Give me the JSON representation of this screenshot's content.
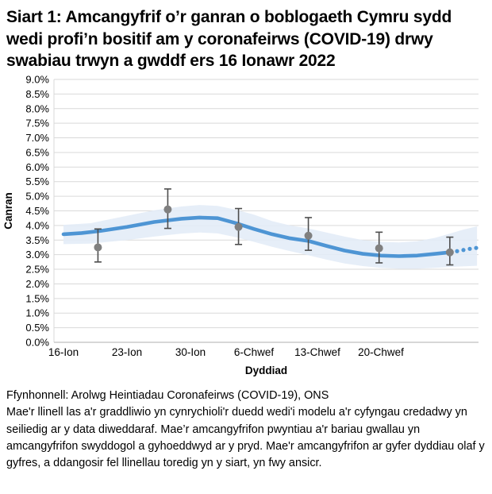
{
  "title": "Siart 1: Amcangyfrif o’r ganran o boblogaeth Cymru sydd wedi profi’n bositif am y coronafeirws (COVID-19) drwy swabiau trwyn a gwddf ers 16 Ionawr 2022",
  "footer": {
    "source": "Ffynhonnell: Arolwg Heintiadau Coronafeirws (COVID-19), ONS",
    "note": "Mae'r llinell las a'r graddliwio yn cynrychioli'r duedd wedi'i modelu a'r cyfyngau credadwy yn seiliedig ar y data diweddaraf. Mae’r amcangyfrifon pwyntiau a'r bariau gwallau yn amcangyfrifon swyddogol a gyhoeddwyd ar y pryd. Mae'r amcangyfrifon ar gyfer dyddiau olaf y gyfres, a ddangosir fel llinellau toredig yn y siart, yn fwy ansicr."
  },
  "chart_data": {
    "type": "line",
    "title": "Siart 1: Amcangyfrif o’r ganran o boblogaeth Cymru sydd wedi profi’n bositif am y coronafeirws (COVID-19) drwy swabiau trwyn a gwddf ers 16 Ionawr 2022",
    "xlabel": "Dyddiad",
    "ylabel": "Canran",
    "ylim": [
      0,
      9
    ],
    "ytick_step": 0.5,
    "ytick_suffix": "%",
    "grid": "horizontal",
    "legend": "none",
    "x_unit": "days since 16 Ionawr 2022",
    "xlim": [
      -1.05,
      45.8
    ],
    "x_ticks": [
      {
        "day": 0,
        "label": "16-Ion"
      },
      {
        "day": 7,
        "label": "23-Ion"
      },
      {
        "day": 14,
        "label": "30-Ion"
      },
      {
        "day": 21,
        "label": "6-Chwef"
      },
      {
        "day": 28,
        "label": "13-Chwef"
      },
      {
        "day": 35,
        "label": "20-Chwef"
      }
    ],
    "colors": {
      "trend_line": "#4E95D4",
      "confidence_band": "#E2ECF7",
      "point_marker": "#808080",
      "error_bar": "#4D4D4D",
      "gridline": "#D9D9D9",
      "axis_line": "#BFBFBF",
      "text": "#000000"
    },
    "series": [
      {
        "name": "modelled-trend-line",
        "type": "line",
        "style": "solid",
        "points": [
          {
            "day": 0,
            "value": 3.7
          },
          {
            "day": 2,
            "value": 3.74
          },
          {
            "day": 4,
            "value": 3.81
          },
          {
            "day": 7,
            "value": 3.95
          },
          {
            "day": 10,
            "value": 4.12
          },
          {
            "day": 13,
            "value": 4.23
          },
          {
            "day": 15,
            "value": 4.27
          },
          {
            "day": 17,
            "value": 4.25
          },
          {
            "day": 19,
            "value": 4.08
          },
          {
            "day": 21,
            "value": 3.88
          },
          {
            "day": 23,
            "value": 3.7
          },
          {
            "day": 25,
            "value": 3.56
          },
          {
            "day": 27,
            "value": 3.47
          },
          {
            "day": 29,
            "value": 3.3
          },
          {
            "day": 31,
            "value": 3.14
          },
          {
            "day": 33,
            "value": 3.03
          },
          {
            "day": 35,
            "value": 2.97
          },
          {
            "day": 37,
            "value": 2.95
          },
          {
            "day": 39,
            "value": 2.97
          },
          {
            "day": 41,
            "value": 3.03
          },
          {
            "day": 42.6,
            "value": 3.08
          }
        ]
      },
      {
        "name": "trend-dotted-tail-more-uncertain",
        "type": "line",
        "style": "dotted",
        "points": [
          {
            "day": 43.4,
            "value": 3.12
          },
          {
            "day": 44.1,
            "value": 3.16
          },
          {
            "day": 44.8,
            "value": 3.2
          },
          {
            "day": 45.5,
            "value": 3.23
          }
        ]
      },
      {
        "name": "credible-interval-band",
        "type": "band",
        "points": [
          {
            "day": 0,
            "lo": 3.36,
            "hi": 4.02
          },
          {
            "day": 3,
            "lo": 3.38,
            "hi": 4.08
          },
          {
            "day": 7,
            "lo": 3.5,
            "hi": 4.33
          },
          {
            "day": 10,
            "lo": 3.62,
            "hi": 4.52
          },
          {
            "day": 13,
            "lo": 3.72,
            "hi": 4.65
          },
          {
            "day": 15,
            "lo": 3.76,
            "hi": 4.7
          },
          {
            "day": 17,
            "lo": 3.73,
            "hi": 4.67
          },
          {
            "day": 19,
            "lo": 3.6,
            "hi": 4.54
          },
          {
            "day": 21,
            "lo": 3.44,
            "hi": 4.37
          },
          {
            "day": 23,
            "lo": 3.27,
            "hi": 4.15
          },
          {
            "day": 25,
            "lo": 3.12,
            "hi": 4.0
          },
          {
            "day": 27,
            "lo": 2.98,
            "hi": 3.9
          },
          {
            "day": 29,
            "lo": 2.83,
            "hi": 3.76
          },
          {
            "day": 31,
            "lo": 2.7,
            "hi": 3.62
          },
          {
            "day": 33,
            "lo": 2.61,
            "hi": 3.5
          },
          {
            "day": 35,
            "lo": 2.55,
            "hi": 3.44
          },
          {
            "day": 37,
            "lo": 2.52,
            "hi": 3.42
          },
          {
            "day": 39,
            "lo": 2.52,
            "hi": 3.46
          },
          {
            "day": 41,
            "lo": 2.55,
            "hi": 3.58
          },
          {
            "day": 42.6,
            "lo": 2.58,
            "hi": 3.72
          },
          {
            "day": 44,
            "lo": 2.6,
            "hi": 3.85
          },
          {
            "day": 45.6,
            "lo": 2.62,
            "hi": 3.97
          }
        ]
      },
      {
        "name": "official-point-estimates-with-error-bars",
        "type": "scatter_errorbar",
        "points": [
          {
            "day": 3.8,
            "value": 3.25,
            "lo": 2.75,
            "hi": 3.88
          },
          {
            "day": 11.5,
            "value": 4.55,
            "lo": 3.9,
            "hi": 5.25
          },
          {
            "day": 19.3,
            "value": 3.95,
            "lo": 3.35,
            "hi": 4.58
          },
          {
            "day": 27.0,
            "value": 3.65,
            "lo": 3.15,
            "hi": 4.27
          },
          {
            "day": 34.8,
            "value": 3.22,
            "lo": 2.72,
            "hi": 3.77
          },
          {
            "day": 42.6,
            "value": 3.08,
            "lo": 2.65,
            "hi": 3.6
          }
        ]
      }
    ]
  }
}
